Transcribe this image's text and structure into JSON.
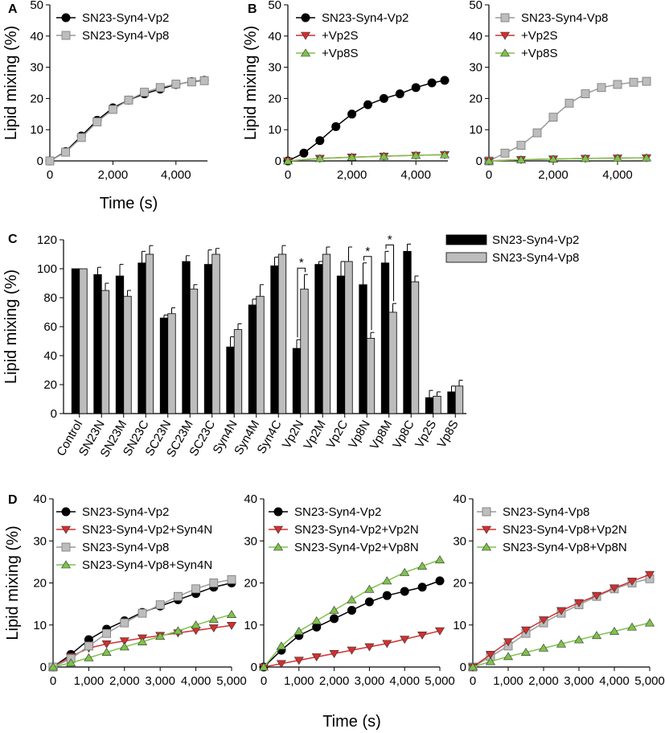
{
  "colors": {
    "vp2": "#000000",
    "vp8": "#bdbdbd",
    "red": "#d32f2f",
    "green": "#7fc24a",
    "axis": "#000000"
  },
  "chart_data": [
    {
      "panel": "A",
      "type": "line",
      "xlabel": "Time (s)",
      "ylabel": "Lipid mixing (%)",
      "xlim": [
        0,
        5000
      ],
      "ylim": [
        0,
        50
      ],
      "xticks": [
        "0",
        "2,000",
        "4,000"
      ],
      "yticks": [
        "0",
        "10",
        "20",
        "30",
        "40",
        "50"
      ],
      "series": [
        {
          "name": "SN23-Syn4-Vp2",
          "marker": "circle",
          "color": "vp2",
          "x": [
            0,
            500,
            1000,
            1500,
            2000,
            2500,
            3000,
            3500,
            4000,
            4500,
            4900
          ],
          "y": [
            0,
            3,
            8,
            13,
            17,
            19.5,
            21.5,
            23,
            24.5,
            25.4,
            25.8
          ]
        },
        {
          "name": "SN23-Syn4-Vp8",
          "marker": "square",
          "color": "vp8",
          "x": [
            0,
            500,
            1000,
            1500,
            2000,
            2500,
            3000,
            3500,
            4000,
            4500,
            4900
          ],
          "y": [
            0,
            2.8,
            7.5,
            12.5,
            16.5,
            19.5,
            22,
            23.5,
            24.6,
            25.3,
            25.7
          ]
        }
      ]
    },
    {
      "panel": "B",
      "type": "line",
      "xlabel": "",
      "ylabel": "Lipid mixing (%)",
      "xlim": [
        0,
        5000
      ],
      "ylim": [
        0,
        50
      ],
      "xticks": [
        "0",
        "2,000",
        "4,000"
      ],
      "yticks": [
        "0",
        "10",
        "20",
        "30",
        "40",
        "50"
      ],
      "series": [
        {
          "name": "SN23-Syn4-Vp2",
          "marker": "circle",
          "color": "vp2",
          "x": [
            0,
            500,
            1000,
            1500,
            2000,
            2500,
            3000,
            3500,
            4000,
            4500,
            4900
          ],
          "y": [
            0,
            2.5,
            6.5,
            11,
            15,
            18,
            20,
            21.5,
            23.5,
            25,
            25.8
          ]
        },
        {
          "name": "+Vp2S",
          "marker": "tri-down",
          "color": "red",
          "x": [
            0,
            1000,
            2000,
            3000,
            4000,
            4900
          ],
          "y": [
            0,
            0.8,
            1.2,
            1.5,
            1.8,
            2
          ]
        },
        {
          "name": "+Vp8S",
          "marker": "tri-up",
          "color": "green",
          "x": [
            0,
            1000,
            2000,
            3000,
            4000,
            4900
          ],
          "y": [
            0,
            0.8,
            1.2,
            1.5,
            1.8,
            2
          ]
        }
      ]
    },
    {
      "panel": "B2",
      "type": "line",
      "xlabel": "",
      "ylabel": "",
      "xlim": [
        0,
        5000
      ],
      "ylim": [
        0,
        50
      ],
      "xticks": [
        "0",
        "2,000",
        "4,000"
      ],
      "yticks": [
        "0",
        "10",
        "20",
        "30",
        "40",
        "50"
      ],
      "series": [
        {
          "name": "SN23-Syn4-Vp8",
          "marker": "square",
          "color": "vp8",
          "x": [
            0,
            500,
            1000,
            1500,
            2000,
            2500,
            3000,
            3500,
            4000,
            4500,
            4900
          ],
          "y": [
            0,
            2.5,
            5,
            9,
            14,
            18.5,
            21.5,
            23.5,
            24.5,
            25.2,
            25.5
          ]
        },
        {
          "name": "+Vp2S",
          "marker": "tri-down",
          "color": "red",
          "x": [
            0,
            1000,
            2000,
            3000,
            4000,
            4900
          ],
          "y": [
            0,
            0.4,
            0.6,
            0.8,
            0.9,
            1
          ]
        },
        {
          "name": "+Vp8S",
          "marker": "tri-up",
          "color": "green",
          "x": [
            0,
            1000,
            2000,
            3000,
            4000,
            4900
          ],
          "y": [
            0,
            0.4,
            0.6,
            0.8,
            0.9,
            1
          ]
        }
      ]
    },
    {
      "panel": "C",
      "type": "bar",
      "ylabel": "Lipid mixing (%)",
      "ylim": [
        0,
        120
      ],
      "yticks": [
        "0",
        "20",
        "40",
        "60",
        "80",
        "100",
        "120"
      ],
      "categories": [
        "Control",
        "SN23N",
        "SN23M",
        "SN23C",
        "SC23N",
        "SC23M",
        "SC23C",
        "Syn4N",
        "Syn4M",
        "Syn4C",
        "Vp2N",
        "Vp2M",
        "Vp2C",
        "Vp8N",
        "Vp8M",
        "Vp8C",
        "Vp2S",
        "Vp8S"
      ],
      "series": [
        {
          "name": "SN23-Syn4-Vp2",
          "color": "vp2",
          "values": [
            100,
            96,
            95,
            104,
            66,
            105,
            103,
            46,
            75,
            102,
            45,
            103,
            95,
            89,
            104,
            112,
            11,
            15
          ],
          "errors": [
            0,
            5,
            8,
            8,
            2,
            4,
            10,
            7,
            4,
            6,
            6,
            2,
            10,
            15,
            8,
            5,
            5,
            4
          ]
        },
        {
          "name": "SN23-Syn4-Vp8",
          "color": "vp8",
          "values": [
            100,
            85,
            81,
            110,
            69,
            86,
            110,
            58,
            81,
            110,
            86,
            110,
            105,
            52,
            70,
            91,
            12,
            19
          ],
          "errors": [
            0,
            5,
            4,
            6,
            4,
            3,
            4,
            4,
            8,
            6,
            10,
            5,
            10,
            4,
            6,
            4,
            3,
            4
          ]
        }
      ],
      "significance": [
        {
          "category": "Vp2N",
          "label": "*"
        },
        {
          "category": "Vp8N",
          "label": "*"
        },
        {
          "category": "Vp8M",
          "label": "*"
        }
      ]
    },
    {
      "panel": "D",
      "type": "line",
      "xlabel": "",
      "ylabel": "Lipid mixing (%)",
      "xlim": [
        0,
        5000
      ],
      "ylim": [
        0,
        40
      ],
      "xticks": [
        "0",
        "1,000",
        "2,000",
        "3,000",
        "4,000",
        "5,000"
      ],
      "yticks": [
        "0",
        "10",
        "20",
        "30",
        "40"
      ],
      "series": [
        {
          "name": "SN23-Syn4-Vp2",
          "marker": "circle",
          "color": "vp2",
          "x": [
            0,
            500,
            1000,
            1500,
            2000,
            2500,
            3000,
            3500,
            4000,
            4500,
            5000
          ],
          "y": [
            0,
            3,
            6.5,
            9,
            11,
            13,
            14.5,
            16,
            17.5,
            19,
            20
          ]
        },
        {
          "name": "SN23-Syn4-Vp2+Syn4N",
          "marker": "tri-down",
          "color": "red",
          "x": [
            0,
            500,
            1000,
            1500,
            2000,
            2500,
            3000,
            3500,
            4000,
            4500,
            5000
          ],
          "y": [
            0,
            2.5,
            4.5,
            5.5,
            6.2,
            6.9,
            7.5,
            8.1,
            8.7,
            9.3,
            9.9
          ]
        },
        {
          "name": "SN23-Syn4-Vp8",
          "marker": "square",
          "color": "vp8",
          "x": [
            0,
            500,
            1000,
            1500,
            2000,
            2500,
            3000,
            3500,
            4000,
            4500,
            5000
          ],
          "y": [
            0,
            2,
            5,
            8,
            10.5,
            12.8,
            14.8,
            16.8,
            18.6,
            20,
            20.8
          ]
        },
        {
          "name": "SN23-Syn4-Vp8+Syn4N",
          "marker": "tri-up",
          "color": "green",
          "x": [
            0,
            500,
            1000,
            1500,
            2000,
            2500,
            3000,
            3500,
            4000,
            4500,
            5000
          ],
          "y": [
            0,
            1,
            2.2,
            3.5,
            4.8,
            6,
            7.3,
            8.6,
            10,
            11.3,
            12.5
          ]
        }
      ]
    },
    {
      "panel": "D2",
      "type": "line",
      "xlabel": "Time (s)",
      "ylabel": "",
      "xlim": [
        0,
        5000
      ],
      "ylim": [
        0,
        40
      ],
      "xticks": [
        "0",
        "1,000",
        "2,000",
        "3,000",
        "4,000",
        "5,000"
      ],
      "yticks": [
        "0",
        "10",
        "20",
        "30",
        "40"
      ],
      "series": [
        {
          "name": "SN23-Syn4-Vp2",
          "marker": "circle",
          "color": "vp2",
          "x": [
            0,
            500,
            1000,
            1500,
            2000,
            2500,
            3000,
            3500,
            4000,
            4500,
            5000
          ],
          "y": [
            0,
            4,
            7.5,
            9.5,
            11.5,
            13.5,
            15.5,
            17,
            18,
            19,
            20.5
          ]
        },
        {
          "name": "SN23-Syn4-Vp2+Vp2N",
          "marker": "tri-down",
          "color": "red",
          "x": [
            0,
            500,
            1000,
            1500,
            2000,
            2500,
            3000,
            3500,
            4000,
            4500,
            5000
          ],
          "y": [
            0,
            0.8,
            1.6,
            2.4,
            3.2,
            4,
            4.8,
            5.6,
            6.6,
            7.6,
            8.6
          ]
        },
        {
          "name": "SN23-Syn4-Vp2+Vp8N",
          "marker": "tri-up",
          "color": "green",
          "x": [
            0,
            500,
            1000,
            1500,
            2000,
            2500,
            3000,
            3500,
            4000,
            4500,
            5000
          ],
          "y": [
            0,
            5,
            8.5,
            11,
            13.5,
            16,
            18.5,
            20.5,
            22.5,
            24,
            25.5
          ]
        }
      ]
    },
    {
      "panel": "D3",
      "type": "line",
      "xlabel": "",
      "ylabel": "",
      "xlim": [
        0,
        5000
      ],
      "ylim": [
        0,
        40
      ],
      "xticks": [
        "0",
        "1,000",
        "2,000",
        "3,000",
        "4,000",
        "5,000"
      ],
      "yticks": [
        "0",
        "10",
        "20",
        "30",
        "40"
      ],
      "series": [
        {
          "name": "SN23-Syn4-Vp8",
          "marker": "square",
          "color": "vp8",
          "x": [
            0,
            500,
            1000,
            1500,
            2000,
            2500,
            3000,
            3500,
            4000,
            4500,
            5000
          ],
          "y": [
            0,
            2.5,
            5,
            8,
            10.5,
            12.8,
            14.8,
            16.8,
            18.6,
            20,
            21
          ]
        },
        {
          "name": "SN23-Syn4-Vp8+Vp2N",
          "marker": "tri-down",
          "color": "red",
          "x": [
            0,
            500,
            1000,
            1500,
            2000,
            2500,
            3000,
            3500,
            4000,
            4500,
            5000
          ],
          "y": [
            0,
            3,
            6,
            8.8,
            11.2,
            13.4,
            15.3,
            17,
            18.8,
            20.4,
            22
          ]
        },
        {
          "name": "SN23-Syn4-Vp8+Vp8N",
          "marker": "tri-up",
          "color": "green",
          "x": [
            0,
            500,
            1000,
            1500,
            2000,
            2500,
            3000,
            3500,
            4000,
            4500,
            5000
          ],
          "y": [
            0,
            1.3,
            2.5,
            3.5,
            4.5,
            5.5,
            6.5,
            7.5,
            8.5,
            9.5,
            10.5
          ]
        }
      ]
    }
  ]
}
